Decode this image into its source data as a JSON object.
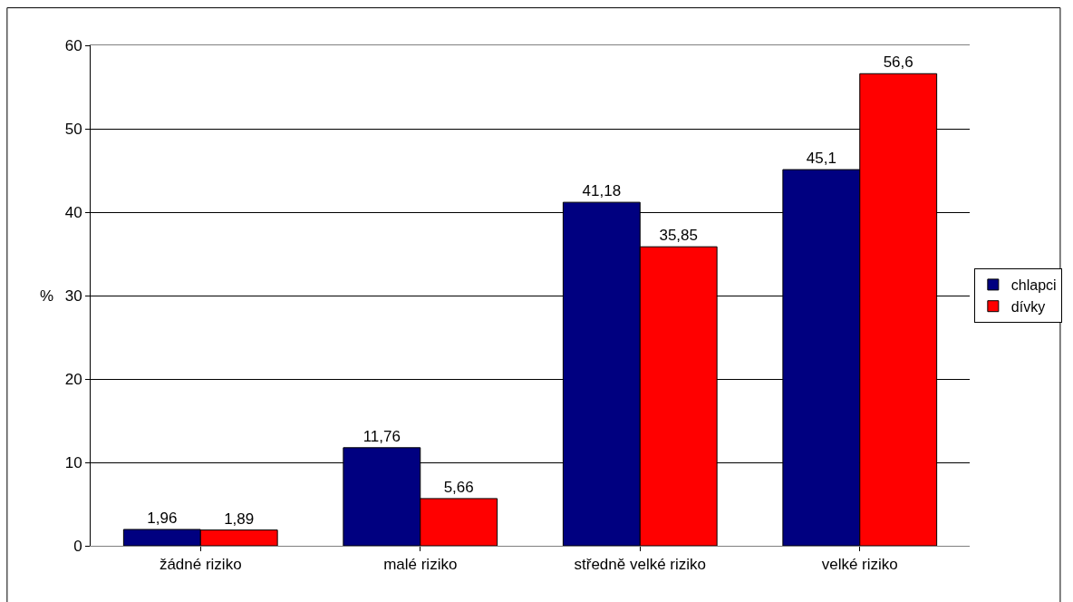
{
  "chart_data": {
    "type": "bar",
    "ylabel": "%",
    "categories": [
      "žádné riziko",
      "malé riziko",
      "středně velké riziko",
      "velké riziko"
    ],
    "series": [
      {
        "name": "chlapci",
        "color": "#000080",
        "values": [
          1.96,
          11.76,
          41.18,
          45.1
        ],
        "value_labels": [
          "1,96",
          "11,76",
          "41,18",
          "45,1"
        ]
      },
      {
        "name": "dívky",
        "color": "#ff0000",
        "values": [
          1.89,
          5.66,
          35.85,
          56.6
        ],
        "value_labels": [
          "1,89",
          "5,66",
          "35,85",
          "56,6"
        ]
      }
    ],
    "ylim": [
      0,
      60
    ],
    "yticks": [
      0,
      10,
      20,
      30,
      40,
      50,
      60
    ],
    "grid": "y",
    "legend": "right"
  }
}
